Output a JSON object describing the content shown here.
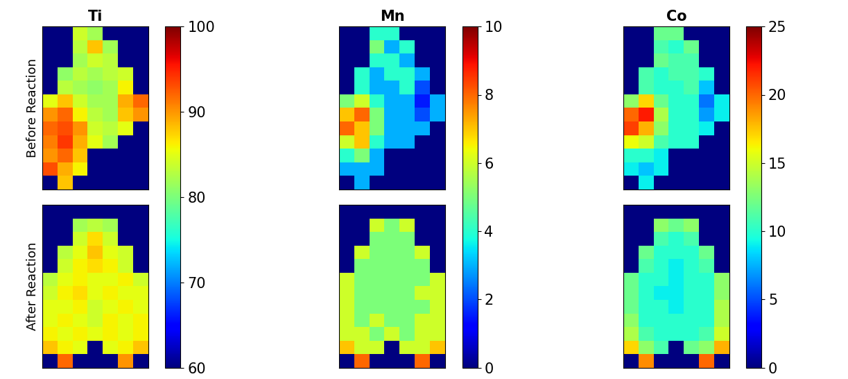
{
  "chart_data": {
    "type": "heatmap",
    "color": "jet",
    "tick_labels": false,
    "rows": [
      "Before Reaction",
      "After Reaction"
    ],
    "columns": [
      {
        "title": "Ti",
        "colorbar": {
          "range": [
            60,
            100
          ],
          "ticks": [
            60,
            70,
            80,
            90,
            100
          ]
        },
        "cells": [
          [
            [
              null,
              null,
              84,
              82,
              null,
              null,
              null
            ],
            [
              null,
              null,
              83,
              88,
              82,
              null,
              null
            ],
            [
              null,
              null,
              82,
              84,
              83,
              null,
              null
            ],
            [
              null,
              81,
              83,
              82,
              83,
              84,
              null
            ],
            [
              null,
              83,
              82,
              81,
              82,
              86,
              null
            ],
            [
              85,
              88,
              84,
              82,
              82,
              89,
              92
            ],
            [
              90,
              92,
              86,
              83,
              82,
              88,
              90
            ],
            [
              92,
              93,
              90,
              84,
              83,
              85,
              null
            ],
            [
              91,
              94,
              89,
              85,
              82,
              null,
              null
            ],
            [
              90,
              92,
              88,
              null,
              null,
              null,
              null
            ],
            [
              93,
              89,
              86,
              null,
              null,
              null,
              null
            ],
            [
              null,
              88,
              null,
              null,
              null,
              null,
              null
            ]
          ],
          [
            [
              null,
              null,
              null,
              null,
              null,
              null,
              null
            ],
            [
              null,
              null,
              82,
              83,
              82,
              null,
              null
            ],
            [
              null,
              null,
              84,
              87,
              84,
              null,
              null
            ],
            [
              null,
              83,
              85,
              88,
              85,
              84,
              null
            ],
            [
              null,
              84,
              86,
              87,
              86,
              84,
              null
            ],
            [
              83,
              85,
              86,
              85,
              85,
              86,
              84
            ],
            [
              84,
              86,
              87,
              85,
              86,
              85,
              85
            ],
            [
              85,
              85,
              86,
              84,
              85,
              86,
              85
            ],
            [
              85,
              86,
              85,
              84,
              86,
              85,
              86
            ],
            [
              86,
              85,
              86,
              85,
              86,
              85,
              86
            ],
            [
              88,
              86,
              85,
              null,
              85,
              86,
              88
            ],
            [
              null,
              92,
              null,
              null,
              null,
              90,
              null
            ]
          ]
        ]
      },
      {
        "title": "Mn",
        "colorbar": {
          "range": [
            0,
            10
          ],
          "ticks": [
            0,
            2,
            4,
            6,
            8,
            10
          ]
        },
        "cells": [
          [
            [
              null,
              null,
              4,
              4,
              null,
              null,
              null
            ],
            [
              null,
              null,
              5,
              3,
              4,
              null,
              null
            ],
            [
              null,
              null,
              4,
              4,
              3,
              null,
              null
            ],
            [
              null,
              4,
              3,
              4,
              4,
              3,
              null
            ],
            [
              null,
              4,
              3,
              3,
              4,
              2,
              null
            ],
            [
              5,
              6,
              4,
              3,
              3,
              1.5,
              3
            ],
            [
              7,
              8,
              5,
              3,
              3,
              2,
              3
            ],
            [
              8,
              7,
              5,
              3,
              3,
              3,
              null
            ],
            [
              6,
              7,
              4,
              3,
              3,
              null,
              null
            ],
            [
              4,
              5,
              3,
              null,
              null,
              null,
              null
            ],
            [
              3,
              3,
              3,
              null,
              null,
              null,
              null
            ],
            [
              null,
              3,
              null,
              null,
              null,
              null,
              null
            ]
          ],
          [
            [
              null,
              null,
              null,
              null,
              null,
              null,
              null
            ],
            [
              null,
              null,
              6,
              5,
              6,
              null,
              null
            ],
            [
              null,
              null,
              5,
              5,
              5,
              null,
              null
            ],
            [
              null,
              6,
              5,
              5,
              5,
              6,
              null
            ],
            [
              null,
              5,
              5,
              5,
              5,
              5,
              null
            ],
            [
              6,
              5,
              5,
              5,
              5,
              5,
              6
            ],
            [
              6,
              5,
              5,
              5,
              5,
              6,
              6
            ],
            [
              6,
              5,
              5,
              5,
              5,
              5,
              6
            ],
            [
              6,
              5,
              6,
              5,
              5,
              6,
              6
            ],
            [
              6,
              6,
              5,
              6,
              5,
              6,
              6
            ],
            [
              7,
              6,
              6,
              null,
              6,
              6,
              7
            ],
            [
              null,
              8,
              null,
              null,
              null,
              8,
              null
            ]
          ]
        ]
      },
      {
        "title": "Co",
        "colorbar": {
          "range": [
            0,
            25
          ],
          "ticks": [
            0,
            5,
            10,
            15,
            20,
            25
          ]
        },
        "cells": [
          [
            [
              null,
              null,
              12,
              12,
              null,
              null,
              null
            ],
            [
              null,
              null,
              11,
              10,
              12,
              null,
              null
            ],
            [
              null,
              null,
              12,
              11,
              11,
              null,
              null
            ],
            [
              null,
              11,
              10,
              11,
              11,
              10,
              null
            ],
            [
              null,
              11,
              10,
              10,
              11,
              8,
              null
            ],
            [
              13,
              17,
              12,
              10,
              10,
              6,
              9
            ],
            [
              20,
              22,
              14,
              10,
              10,
              7,
              9
            ],
            [
              21,
              18,
              13,
              10,
              10,
              9,
              null
            ],
            [
              16,
              15,
              11,
              10,
              10,
              null,
              null
            ],
            [
              10,
              10,
              9,
              null,
              null,
              null,
              null
            ],
            [
              9,
              8,
              9,
              null,
              null,
              null,
              null
            ],
            [
              null,
              9,
              null,
              null,
              null,
              null,
              null
            ]
          ],
          [
            [
              null,
              null,
              null,
              null,
              null,
              null,
              null
            ],
            [
              null,
              null,
              13,
              12,
              13,
              null,
              null
            ],
            [
              null,
              null,
              11,
              10,
              11,
              null,
              null
            ],
            [
              null,
              12,
              10,
              10,
              10,
              12,
              null
            ],
            [
              null,
              11,
              10,
              9,
              10,
              11,
              null
            ],
            [
              12,
              10,
              10,
              9,
              10,
              10,
              13
            ],
            [
              12,
              10,
              9,
              9,
              10,
              10,
              13
            ],
            [
              12,
              10,
              10,
              9,
              10,
              10,
              14
            ],
            [
              13,
              10,
              10,
              10,
              10,
              10,
              14
            ],
            [
              14,
              11,
              10,
              10,
              10,
              11,
              15
            ],
            [
              17,
              13,
              11,
              null,
              12,
              13,
              18
            ],
            [
              null,
              19,
              null,
              null,
              null,
              20,
              null
            ]
          ]
        ]
      }
    ]
  }
}
